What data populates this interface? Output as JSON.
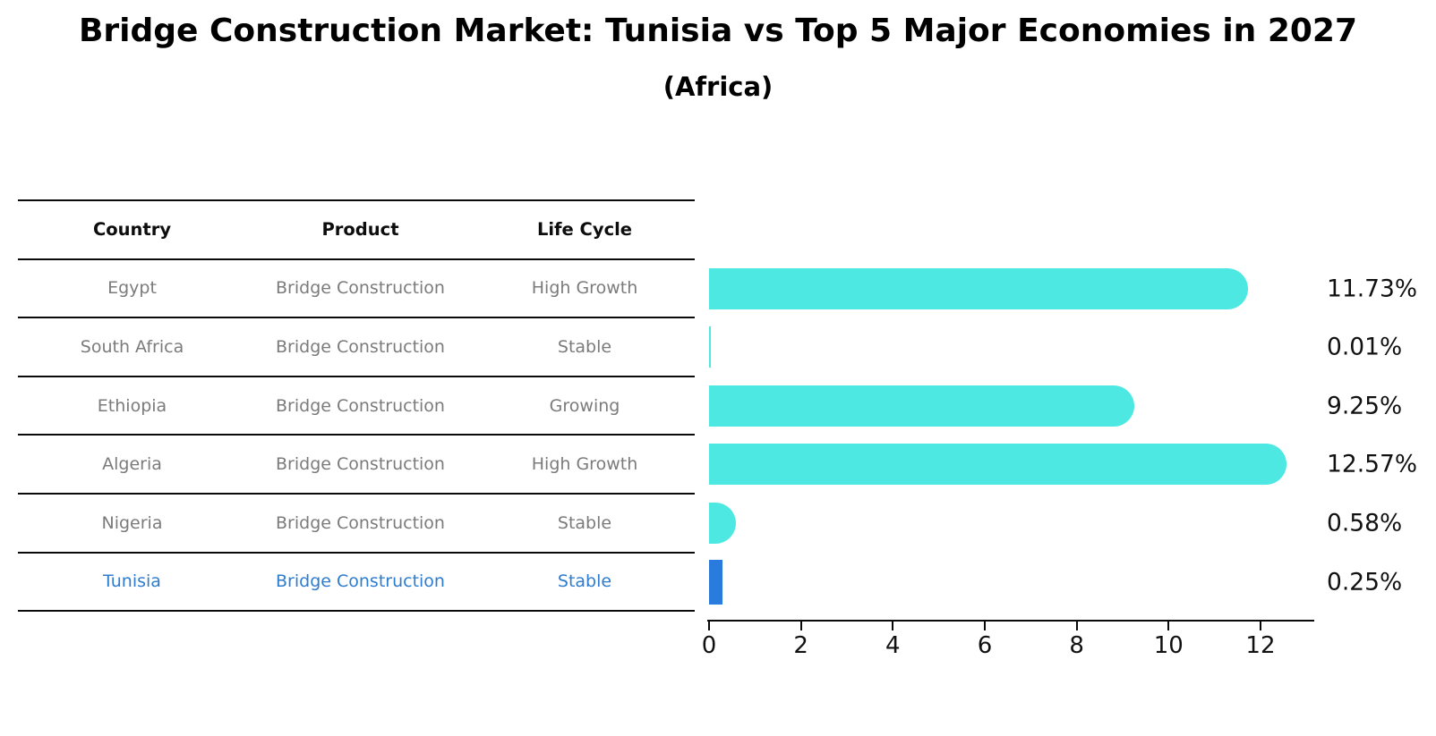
{
  "title": "Bridge Construction Market: Tunisia vs Top 5 Major Economies in 2027",
  "subtitle": "(Africa)",
  "table": {
    "headers": [
      "Country",
      "Product",
      "Life Cycle"
    ],
    "rows": [
      {
        "country": "Egypt",
        "product": "Bridge Construction",
        "life_cycle": "High Growth",
        "highlight": false
      },
      {
        "country": "South Africa",
        "product": "Bridge Construction",
        "life_cycle": "Stable",
        "highlight": false
      },
      {
        "country": "Ethiopia",
        "product": "Bridge Construction",
        "life_cycle": "Growing",
        "highlight": false
      },
      {
        "country": "Algeria",
        "product": "Bridge Construction",
        "life_cycle": "High Growth",
        "highlight": false
      },
      {
        "country": "Nigeria",
        "product": "Bridge Construction",
        "life_cycle": "Stable",
        "highlight": false
      },
      {
        "country": "Tunisia",
        "product": "Bridge Construction",
        "life_cycle": "Stable",
        "highlight": true
      }
    ]
  },
  "chart_data": {
    "type": "bar",
    "orientation": "horizontal",
    "title": "Bridge Construction Market: Tunisia vs Top 5 Major Economies in 2027",
    "subtitle": "(Africa)",
    "categories": [
      "Egypt",
      "South Africa",
      "Ethiopia",
      "Algeria",
      "Nigeria",
      "Tunisia"
    ],
    "values": [
      11.73,
      0.01,
      9.25,
      12.57,
      0.58,
      0.25
    ],
    "value_labels": [
      "11.73%",
      "0.01%",
      "9.25%",
      "12.57%",
      "0.58%",
      "0.25%"
    ],
    "x_ticks": [
      0,
      2,
      4,
      6,
      8,
      10,
      12
    ],
    "xlim": [
      0,
      13.2
    ],
    "grid": false,
    "legend": false,
    "bar_color": "#4de8e2",
    "highlight_bar_color": "#2a7bde",
    "highlight_index": 5,
    "highlight_bar_style": "dotted"
  },
  "colors": {
    "background": "#ffffff",
    "table_line": "#0a0a0a",
    "table_text": "#7b7b7b",
    "header_text": "#0d0d0d",
    "highlight_text": "#2e7ccf",
    "axis": "#0a0a0a",
    "label_text": "#111111"
  }
}
